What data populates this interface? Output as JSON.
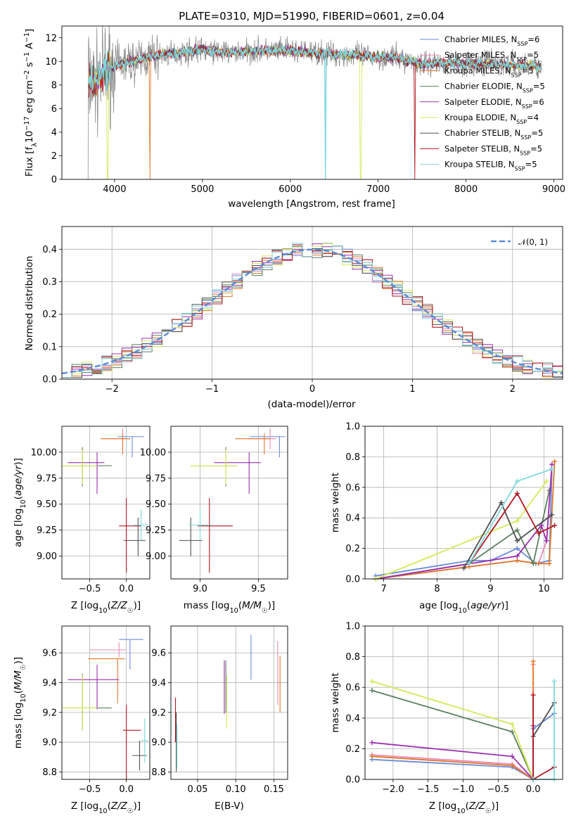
{
  "title": "PLATE=0310, MJD=51990, FIBERID=0601, z=0.04",
  "series": [
    {
      "name": "Chabrier MILES",
      "nssp": "6",
      "color": "#6a8bd9"
    },
    {
      "name": "Salpeter MILES",
      "nssp": "5",
      "color": "#e88ab8"
    },
    {
      "name": "Kroupa MILES",
      "nssp": "5",
      "color": "#e0772a"
    },
    {
      "name": "Chabrier ELODIE",
      "nssp": "5",
      "color": "#5b8060"
    },
    {
      "name": "Salpeter ELODIE",
      "nssp": "6",
      "color": "#9c2fb0"
    },
    {
      "name": "Kroupa ELODIE",
      "nssp": "4",
      "color": "#d4e85a"
    },
    {
      "name": "Chabrier STELIB",
      "nssp": "5",
      "color": "#505050"
    },
    {
      "name": "Salpeter STELIB",
      "nssp": "5",
      "color": "#b01820"
    },
    {
      "name": "Kroupa STELIB",
      "nssp": "5",
      "color": "#7fd8dc"
    }
  ],
  "chart_data": [
    {
      "type": "line",
      "id": "spectrum",
      "xlabel": "wavelength [Angstrom, rest frame]",
      "ylabel": "Flux [f_λ 10^-17 erg cm^-2 s^-1 A^-1]",
      "xlim": [
        3400,
        9100
      ],
      "ylim": [
        0,
        13
      ],
      "xticks": [
        4000,
        5000,
        6000,
        7000,
        8000,
        9000
      ],
      "yticks": [
        0,
        2,
        4,
        6,
        8,
        10,
        12
      ],
      "data_spectrum_approx": [
        [
          3700,
          8.5
        ],
        [
          3800,
          8.2
        ],
        [
          3900,
          9.2
        ],
        [
          4000,
          9.6
        ],
        [
          4200,
          10.0
        ],
        [
          4500,
          10.5
        ],
        [
          4800,
          10.8
        ],
        [
          5000,
          11.0
        ],
        [
          5300,
          10.7
        ],
        [
          5600,
          10.9
        ],
        [
          6000,
          10.9
        ],
        [
          6300,
          10.7
        ],
        [
          6600,
          10.6
        ],
        [
          6900,
          10.4
        ],
        [
          7200,
          10.3
        ],
        [
          7500,
          9.8
        ],
        [
          7800,
          9.9
        ],
        [
          8200,
          9.8
        ],
        [
          8600,
          9.7
        ],
        [
          8850,
          9.6
        ]
      ],
      "legend": "right"
    },
    {
      "type": "histogram",
      "id": "residuals",
      "xlabel": "(data-model)/error",
      "ylabel": "Normed distribution",
      "xlim": [
        -2.5,
        2.5
      ],
      "ylim": [
        0,
        0.47
      ],
      "xticks": [
        -2,
        -1,
        0,
        1,
        2
      ],
      "yticks": [
        0.0,
        0.1,
        0.2,
        0.3,
        0.4
      ],
      "reference_label": "N(0,1)",
      "reference_color": "#5b8ad6",
      "bin_width": 0.1,
      "grid": true,
      "legend": "top-right"
    },
    {
      "type": "scatter",
      "id": "age_vs_Z",
      "xlabel": "Z [log10(Z/Z☉)]",
      "ylabel": "age [log10(age/yr)]",
      "xlim": [
        -0.88,
        0.32
      ],
      "ylim": [
        8.78,
        10.25
      ],
      "xticks": [
        -0.5,
        0.0
      ],
      "yticks": [
        9.0,
        9.25,
        9.5,
        9.75,
        10.0
      ],
      "points": [
        {
          "x": 0.08,
          "y": 10.15,
          "xerr": [
            0.2,
            0.16
          ],
          "yerr": [
            0.2,
            0.0
          ]
        },
        {
          "x": -0.05,
          "y": 10.13,
          "xerr": [
            0.25,
            0.1
          ],
          "yerr": [
            0.1,
            0.1
          ]
        },
        {
          "x": -0.05,
          "y": 10.13,
          "xerr": [
            0.3,
            0.1
          ],
          "yerr": [
            0.15,
            0.05
          ]
        },
        {
          "x": -0.6,
          "y": 9.87,
          "xerr": [
            0.3,
            0.4
          ],
          "yerr": [
            0.2,
            0.18
          ]
        },
        {
          "x": -0.4,
          "y": 9.9,
          "xerr": [
            0.4,
            0.1
          ],
          "yerr": [
            0.3,
            0.1
          ]
        },
        {
          "x": -0.6,
          "y": 9.87,
          "xerr": [
            0.3,
            0.2
          ],
          "yerr": [
            0.18,
            0.15
          ]
        },
        {
          "x": 0.16,
          "y": 9.15,
          "xerr": [
            0.2,
            0.1
          ],
          "yerr": [
            0.15,
            0.22
          ]
        },
        {
          "x": 0.0,
          "y": 9.29,
          "xerr": [
            0.1,
            0.2
          ],
          "yerr": [
            0.45,
            0.27
          ]
        },
        {
          "x": 0.2,
          "y": 9.3,
          "xerr": [
            0.1,
            0.1
          ],
          "yerr": [
            0.15,
            0.15
          ]
        }
      ]
    },
    {
      "type": "scatter",
      "id": "age_vs_mass",
      "xlabel": "mass [log10(M/M☉)]",
      "ylabel": "",
      "xlim": [
        8.75,
        9.75
      ],
      "ylim": [
        8.78,
        10.25
      ],
      "xticks": [
        9.0,
        9.5
      ],
      "yticks": [
        9.0,
        9.25,
        9.5,
        9.75,
        10.0
      ],
      "points": [
        {
          "x": 9.68,
          "y": 10.15,
          "xerr": [
            0.25,
            0.05
          ],
          "yerr": [
            0.2,
            0.0
          ]
        },
        {
          "x": 9.6,
          "y": 10.13,
          "xerr": [
            0.2,
            0.05
          ],
          "yerr": [
            0.1,
            0.1
          ]
        },
        {
          "x": 9.55,
          "y": 10.13,
          "xerr": [
            0.25,
            0.05
          ],
          "yerr": [
            0.15,
            0.05
          ]
        },
        {
          "x": 9.22,
          "y": 9.87,
          "xerr": [
            0.3,
            0.1
          ],
          "yerr": [
            0.2,
            0.18
          ]
        },
        {
          "x": 9.42,
          "y": 9.9,
          "xerr": [
            0.3,
            0.1
          ],
          "yerr": [
            0.3,
            0.1
          ]
        },
        {
          "x": 9.22,
          "y": 9.87,
          "xerr": [
            0.3,
            0.1
          ],
          "yerr": [
            0.18,
            0.15
          ]
        },
        {
          "x": 8.92,
          "y": 9.15,
          "xerr": [
            0.1,
            0.1
          ],
          "yerr": [
            0.15,
            0.22
          ]
        },
        {
          "x": 9.08,
          "y": 9.29,
          "xerr": [
            0.1,
            0.2
          ],
          "yerr": [
            0.45,
            0.27
          ]
        },
        {
          "x": 9.0,
          "y": 9.3,
          "xerr": [
            0.1,
            0.1
          ],
          "yerr": [
            0.15,
            0.15
          ]
        }
      ]
    },
    {
      "type": "line",
      "id": "weight_vs_age",
      "xlabel": "age [log10(age/yr)]",
      "ylabel": "mass weight",
      "xlim": [
        6.65,
        10.35
      ],
      "ylim": [
        0,
        1.0
      ],
      "xticks": [
        7,
        8,
        9,
        10
      ],
      "yticks": [
        0.0,
        0.2,
        0.4,
        0.6,
        0.8,
        1.0
      ],
      "lines": [
        [
          [
            6.85,
            0.02
          ],
          [
            8.6,
            0.12
          ],
          [
            9.0,
            0.12
          ],
          [
            9.5,
            0.2
          ],
          [
            9.85,
            0.1
          ],
          [
            10.1,
            0.12
          ],
          [
            10.15,
            0.72
          ]
        ],
        [
          [
            6.85,
            0.0
          ],
          [
            9.5,
            0.12
          ],
          [
            9.9,
            0.1
          ],
          [
            10.05,
            0.25
          ],
          [
            10.15,
            0.75
          ]
        ],
        [
          [
            6.85,
            0.0
          ],
          [
            8.6,
            0.08
          ],
          [
            9.5,
            0.12
          ],
          [
            9.9,
            0.1
          ],
          [
            10.1,
            0.1
          ],
          [
            10.2,
            0.77
          ]
        ],
        [
          [
            6.85,
            0.0
          ],
          [
            8.6,
            0.1
          ],
          [
            9.5,
            0.32
          ],
          [
            9.8,
            0.1
          ],
          [
            10.1,
            0.58
          ]
        ],
        [
          [
            6.85,
            0.0
          ],
          [
            9.5,
            0.15
          ],
          [
            9.95,
            0.35
          ],
          [
            10.05,
            0.25
          ],
          [
            10.15,
            0.75
          ]
        ],
        [
          [
            6.85,
            0.0
          ],
          [
            9.5,
            0.38
          ],
          [
            10.05,
            0.64
          ]
        ],
        [
          [
            8.5,
            0.07
          ],
          [
            9.2,
            0.5
          ],
          [
            9.5,
            0.25
          ],
          [
            10.15,
            0.42
          ]
        ],
        [
          [
            8.6,
            0.1
          ],
          [
            9.5,
            0.56
          ],
          [
            9.9,
            0.3
          ],
          [
            10.2,
            0.35
          ]
        ],
        [
          [
            8.6,
            0.1
          ],
          [
            9.5,
            0.64
          ],
          [
            10.15,
            0.72
          ]
        ]
      ]
    },
    {
      "type": "scatter",
      "id": "mass_vs_Z",
      "xlabel": "Z [log10(Z/Z☉)]",
      "ylabel": "mass [log10(M/M☉)]",
      "xlim": [
        -0.88,
        0.32
      ],
      "ylim": [
        8.75,
        9.78
      ],
      "xticks": [
        -0.5,
        0.0
      ],
      "yticks": [
        8.8,
        9.0,
        9.2,
        9.4,
        9.6
      ],
      "points": [
        {
          "x": 0.05,
          "y": 9.69,
          "xerr": [
            0.15,
            0.18
          ],
          "yerr": [
            0.2,
            0.0
          ]
        },
        {
          "x": -0.1,
          "y": 9.62,
          "xerr": [
            0.4,
            0.1
          ],
          "yerr": [
            0.05,
            0.05
          ]
        },
        {
          "x": -0.12,
          "y": 9.56,
          "xerr": [
            0.4,
            0.1
          ],
          "yerr": [
            0.3,
            0.0
          ]
        },
        {
          "x": -0.6,
          "y": 9.23,
          "xerr": [
            0.3,
            0.4
          ],
          "yerr": [
            0.15,
            0.23
          ]
        },
        {
          "x": -0.4,
          "y": 9.42,
          "xerr": [
            0.4,
            0.3
          ],
          "yerr": [
            0.2,
            0.1
          ]
        },
        {
          "x": -0.6,
          "y": 9.23,
          "xerr": [
            0.3,
            0.2
          ],
          "yerr": [
            0.15,
            0.22
          ]
        },
        {
          "x": 0.18,
          "y": 8.91,
          "xerr": [
            0.1,
            0.1
          ],
          "yerr": [
            0.1,
            0.1
          ]
        },
        {
          "x": 0.0,
          "y": 9.08,
          "xerr": [
            0.05,
            0.2
          ],
          "yerr": [
            0.35,
            0.17
          ]
        },
        {
          "x": 0.25,
          "y": 9.01,
          "xerr": [
            0.05,
            0.05
          ],
          "yerr": [
            0.15,
            0.15
          ]
        }
      ]
    },
    {
      "type": "scatter",
      "id": "mass_vs_EBV",
      "xlabel": "E(B-V)",
      "ylabel": "",
      "xlim": [
        0.015,
        0.168
      ],
      "ylim": [
        8.75,
        9.78
      ],
      "xticks": [
        0.05,
        0.1,
        0.15
      ],
      "yticks": [
        8.8,
        9.0,
        9.2,
        9.4,
        9.6
      ],
      "points": [
        {
          "x": 0.12,
          "y": 9.57,
          "xerr": [
            0.0,
            0.0
          ],
          "yerr": [
            0.15,
            0.15
          ]
        },
        {
          "x": 0.155,
          "y": 9.45,
          "xerr": [
            0.0,
            0.0
          ],
          "yerr": [
            0.2,
            0.23
          ]
        },
        {
          "x": 0.158,
          "y": 9.4,
          "xerr": [
            0.0,
            0.0
          ],
          "yerr": [
            0.2,
            0.18
          ]
        },
        {
          "x": 0.087,
          "y": 9.35,
          "xerr": [
            0.0,
            0.0
          ],
          "yerr": [
            0.15,
            0.2
          ]
        },
        {
          "x": 0.085,
          "y": 9.37,
          "xerr": [
            0.0,
            0.0
          ],
          "yerr": [
            0.18,
            0.18
          ]
        },
        {
          "x": 0.088,
          "y": 9.27,
          "xerr": [
            0.0,
            0.0
          ],
          "yerr": [
            0.18,
            0.18
          ]
        },
        {
          "x": 0.022,
          "y": 9.0,
          "xerr": [
            0.0,
            0.0
          ],
          "yerr": [
            0.2,
            0.2
          ]
        },
        {
          "x": 0.021,
          "y": 9.15,
          "xerr": [
            0.0,
            0.0
          ],
          "yerr": [
            0.15,
            0.15
          ]
        },
        {
          "x": 0.023,
          "y": 8.97,
          "xerr": [
            0.0,
            0.0
          ],
          "yerr": [
            0.15,
            0.15
          ]
        }
      ]
    },
    {
      "type": "line",
      "id": "weight_vs_Z",
      "xlabel": "Z [log10(Z/Z☉)]",
      "ylabel": "mass weight",
      "xlim": [
        -2.4,
        0.42
      ],
      "ylim": [
        0,
        1.0
      ],
      "xticks": [
        -2.0,
        -1.5,
        -1.0,
        -0.5,
        0.0
      ],
      "yticks": [
        0.0,
        0.2,
        0.4,
        0.6,
        0.8,
        1.0
      ],
      "lines": [
        [
          [
            -2.3,
            0.13
          ],
          [
            -0.3,
            0.08
          ],
          [
            0.0,
            0.0
          ],
          [
            0.0,
            0.33
          ],
          [
            0.3,
            0.43
          ]
        ],
        [
          [
            -2.3,
            0.16
          ],
          [
            -0.3,
            0.1
          ],
          [
            0.0,
            0.0
          ],
          [
            0.0,
            0.75
          ]
        ],
        [
          [
            -2.3,
            0.15
          ],
          [
            -0.3,
            0.09
          ],
          [
            0.0,
            0.0
          ],
          [
            0.0,
            0.77
          ]
        ],
        [
          [
            -2.3,
            0.58
          ],
          [
            -0.3,
            0.31
          ],
          [
            0.0,
            0.0
          ]
        ],
        [
          [
            -2.3,
            0.24
          ],
          [
            -0.3,
            0.15
          ],
          [
            0.0,
            0.0
          ],
          [
            0.0,
            0.35
          ]
        ],
        [
          [
            -2.3,
            0.64
          ],
          [
            -0.3,
            0.36
          ],
          [
            0.0,
            0.0
          ]
        ],
        [
          [
            0.0,
            0.28
          ],
          [
            0.3,
            0.5
          ]
        ],
        [
          [
            0.0,
            0.55
          ],
          [
            0.0,
            0.0
          ],
          [
            0.3,
            0.08
          ]
        ],
        [
          [
            0.0,
            0.0
          ],
          [
            0.3,
            0.0
          ],
          [
            0.3,
            0.64
          ]
        ]
      ]
    }
  ]
}
